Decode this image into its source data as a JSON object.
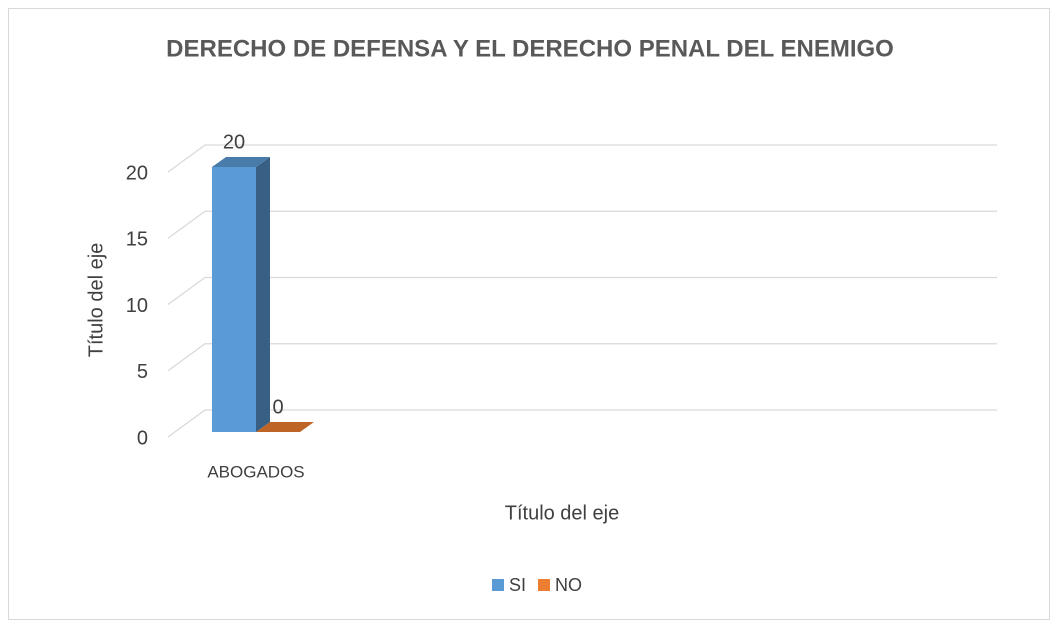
{
  "chart_data": {
    "type": "bar3d",
    "title": "DERECHO DE DEFENSA Y EL DERECHO PENAL DEL ENEMIGO",
    "categories": [
      "ABOGADOS"
    ],
    "series": [
      {
        "name": "SI",
        "color": "#5b9bd5",
        "values": [
          20
        ]
      },
      {
        "name": "NO",
        "color": "#ed7d31",
        "values": [
          0
        ]
      }
    ],
    "ylim": [
      0,
      20
    ],
    "yticks": [
      0,
      5,
      10,
      15,
      20
    ],
    "xlabel": "Título del eje",
    "ylabel": "Título del eje",
    "grid": true,
    "legend": "bottom"
  }
}
